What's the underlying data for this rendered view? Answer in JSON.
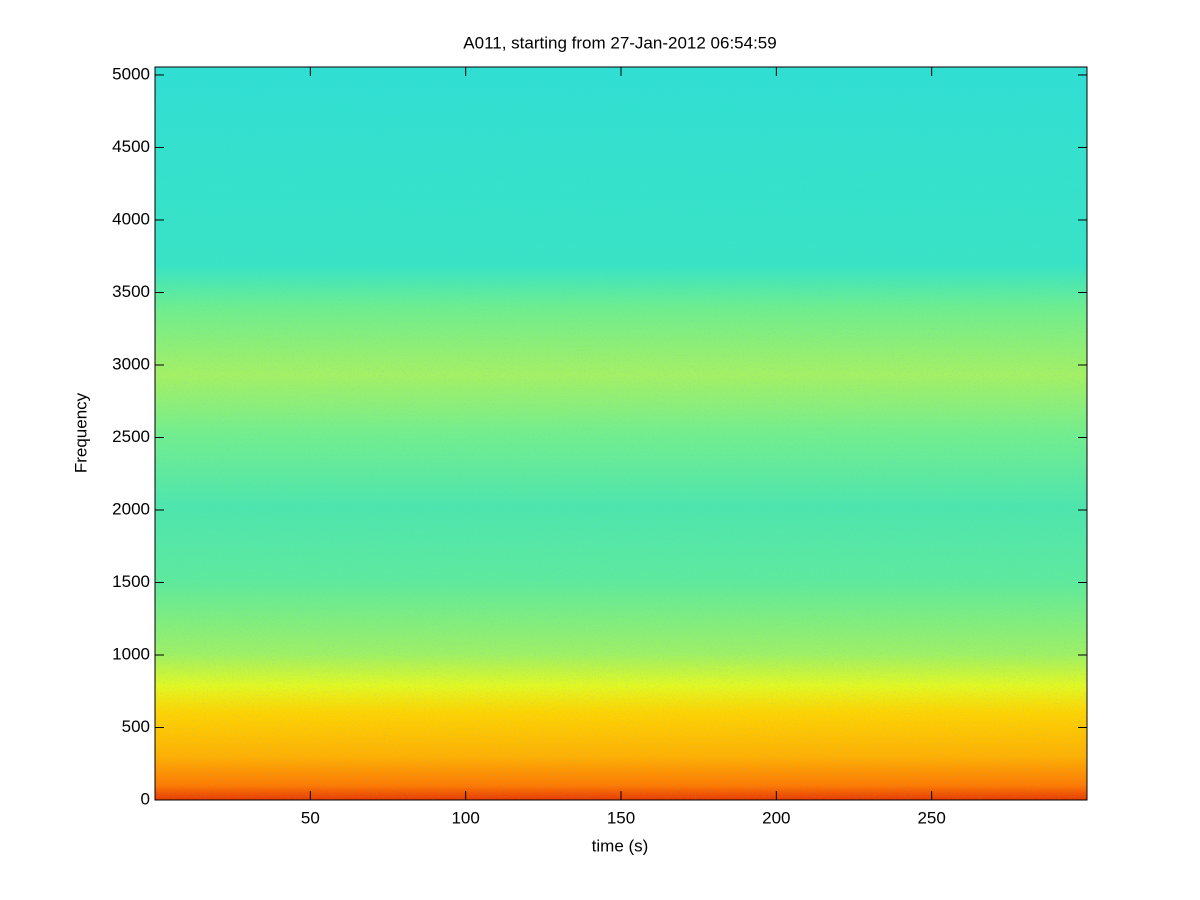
{
  "chart_data": {
    "type": "spectrogram",
    "title": "A011, starting from 27-Jan-2012 06:54:59",
    "xlabel": "time (s)",
    "ylabel": "Frequency",
    "xlim": [
      0,
      300
    ],
    "xticks": [
      50,
      100,
      150,
      200,
      250
    ],
    "ylim": [
      0,
      5055
    ],
    "yticks": [
      0,
      500,
      1000,
      1500,
      2000,
      2500,
      3000,
      3500,
      4000,
      4500,
      5000
    ]
  }
}
